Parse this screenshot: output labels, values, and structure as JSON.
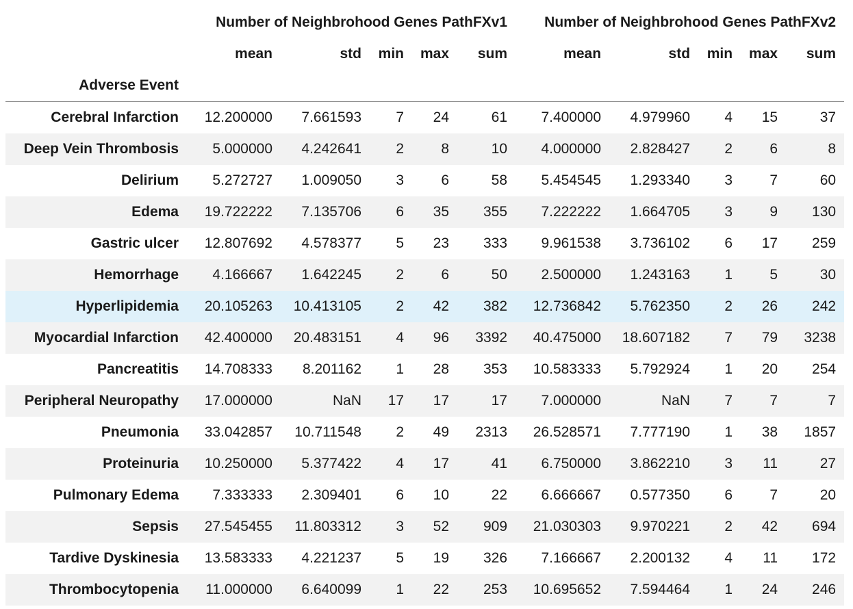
{
  "table": {
    "index_name": "Adverse Event",
    "groups": [
      {
        "label": "Number of Neighbrohood Genes PathFXv1"
      },
      {
        "label": "Number of Neighbrohood Genes PathFXv2"
      }
    ],
    "sub_columns": [
      "mean",
      "std",
      "min",
      "max",
      "sum"
    ],
    "highlighted_row": 6,
    "colors": {
      "row_even": "#ffffff",
      "row_odd": "#f2f2f2",
      "row_hover": "#dff1fa",
      "header_rule": "#8a8a8a"
    },
    "rows": [
      {
        "label": "Cerebral Infarction",
        "v1": [
          "12.200000",
          "7.661593",
          "7",
          "24",
          "61"
        ],
        "v2": [
          "7.400000",
          "4.979960",
          "4",
          "15",
          "37"
        ]
      },
      {
        "label": "Deep Vein Thrombosis",
        "v1": [
          "5.000000",
          "4.242641",
          "2",
          "8",
          "10"
        ],
        "v2": [
          "4.000000",
          "2.828427",
          "2",
          "6",
          "8"
        ]
      },
      {
        "label": "Delirium",
        "v1": [
          "5.272727",
          "1.009050",
          "3",
          "6",
          "58"
        ],
        "v2": [
          "5.454545",
          "1.293340",
          "3",
          "7",
          "60"
        ]
      },
      {
        "label": "Edema",
        "v1": [
          "19.722222",
          "7.135706",
          "6",
          "35",
          "355"
        ],
        "v2": [
          "7.222222",
          "1.664705",
          "3",
          "9",
          "130"
        ]
      },
      {
        "label": "Gastric ulcer",
        "v1": [
          "12.807692",
          "4.578377",
          "5",
          "23",
          "333"
        ],
        "v2": [
          "9.961538",
          "3.736102",
          "6",
          "17",
          "259"
        ]
      },
      {
        "label": "Hemorrhage",
        "v1": [
          "4.166667",
          "1.642245",
          "2",
          "6",
          "50"
        ],
        "v2": [
          "2.500000",
          "1.243163",
          "1",
          "5",
          "30"
        ]
      },
      {
        "label": "Hyperlipidemia",
        "v1": [
          "20.105263",
          "10.413105",
          "2",
          "42",
          "382"
        ],
        "v2": [
          "12.736842",
          "5.762350",
          "2",
          "26",
          "242"
        ]
      },
      {
        "label": "Myocardial Infarction",
        "v1": [
          "42.400000",
          "20.483151",
          "4",
          "96",
          "3392"
        ],
        "v2": [
          "40.475000",
          "18.607182",
          "7",
          "79",
          "3238"
        ]
      },
      {
        "label": "Pancreatitis",
        "v1": [
          "14.708333",
          "8.201162",
          "1",
          "28",
          "353"
        ],
        "v2": [
          "10.583333",
          "5.792924",
          "1",
          "20",
          "254"
        ]
      },
      {
        "label": "Peripheral Neuropathy",
        "v1": [
          "17.000000",
          "NaN",
          "17",
          "17",
          "17"
        ],
        "v2": [
          "7.000000",
          "NaN",
          "7",
          "7",
          "7"
        ]
      },
      {
        "label": "Pneumonia",
        "v1": [
          "33.042857",
          "10.711548",
          "2",
          "49",
          "2313"
        ],
        "v2": [
          "26.528571",
          "7.777190",
          "1",
          "38",
          "1857"
        ]
      },
      {
        "label": "Proteinuria",
        "v1": [
          "10.250000",
          "5.377422",
          "4",
          "17",
          "41"
        ],
        "v2": [
          "6.750000",
          "3.862210",
          "3",
          "11",
          "27"
        ]
      },
      {
        "label": "Pulmonary Edema",
        "v1": [
          "7.333333",
          "2.309401",
          "6",
          "10",
          "22"
        ],
        "v2": [
          "6.666667",
          "0.577350",
          "6",
          "7",
          "20"
        ]
      },
      {
        "label": "Sepsis",
        "v1": [
          "27.545455",
          "11.803312",
          "3",
          "52",
          "909"
        ],
        "v2": [
          "21.030303",
          "9.970221",
          "2",
          "42",
          "694"
        ]
      },
      {
        "label": "Tardive Dyskinesia",
        "v1": [
          "13.583333",
          "4.221237",
          "5",
          "19",
          "326"
        ],
        "v2": [
          "7.166667",
          "2.200132",
          "4",
          "11",
          "172"
        ]
      },
      {
        "label": "Thrombocytopenia",
        "v1": [
          "11.000000",
          "6.640099",
          "1",
          "22",
          "253"
        ],
        "v2": [
          "10.695652",
          "7.594464",
          "1",
          "24",
          "246"
        ]
      }
    ]
  }
}
